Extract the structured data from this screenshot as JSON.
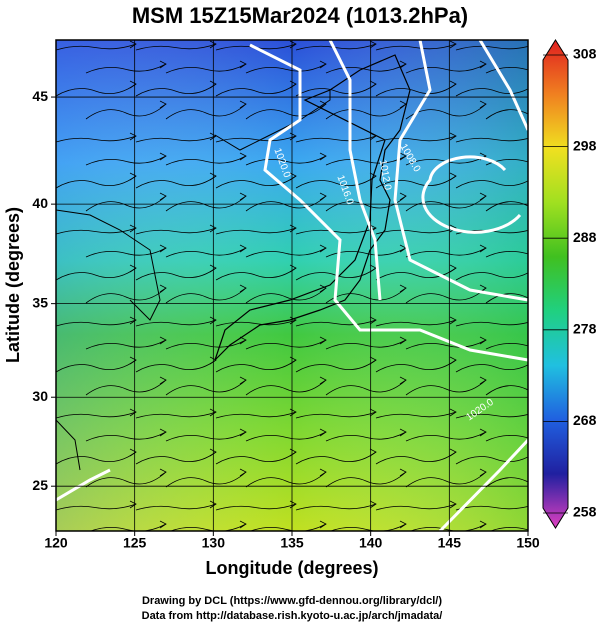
{
  "chart_data": {
    "type": "map",
    "title": "MSM 15Z15Mar2024 (1013.2hPa)",
    "x_label": "Longitude (degrees)",
    "y_label": "Latitude  (degrees)",
    "projection": "mercator",
    "xlim": [
      120,
      150
    ],
    "xticks": [
      120,
      125,
      130,
      135,
      140,
      145,
      150
    ],
    "ylim": [
      22.4,
      47.5
    ],
    "yticks": [
      25,
      30,
      35,
      40,
      45
    ],
    "grid": true,
    "colorbar": {
      "lim": [
        258,
        308
      ],
      "ticks": [
        258,
        268,
        278,
        288,
        298,
        308
      ],
      "colors": [
        "#e040c0",
        "#2020a0",
        "#2060e0",
        "#20c0e0",
        "#20d080",
        "#40c020",
        "#a0e020",
        "#f0e020",
        "#f08020",
        "#e02020"
      ]
    },
    "contour_labels": [
      "1020.0",
      "1016.0",
      "1012.0",
      "1008.0",
      "1020.0"
    ],
    "footer": [
      "Drawing by DCL (https://www.gfd-dennou.org/library/dcl/)",
      "Data from http://database.rish.kyoto-u.ac.jp/arch/jmadata/"
    ]
  }
}
